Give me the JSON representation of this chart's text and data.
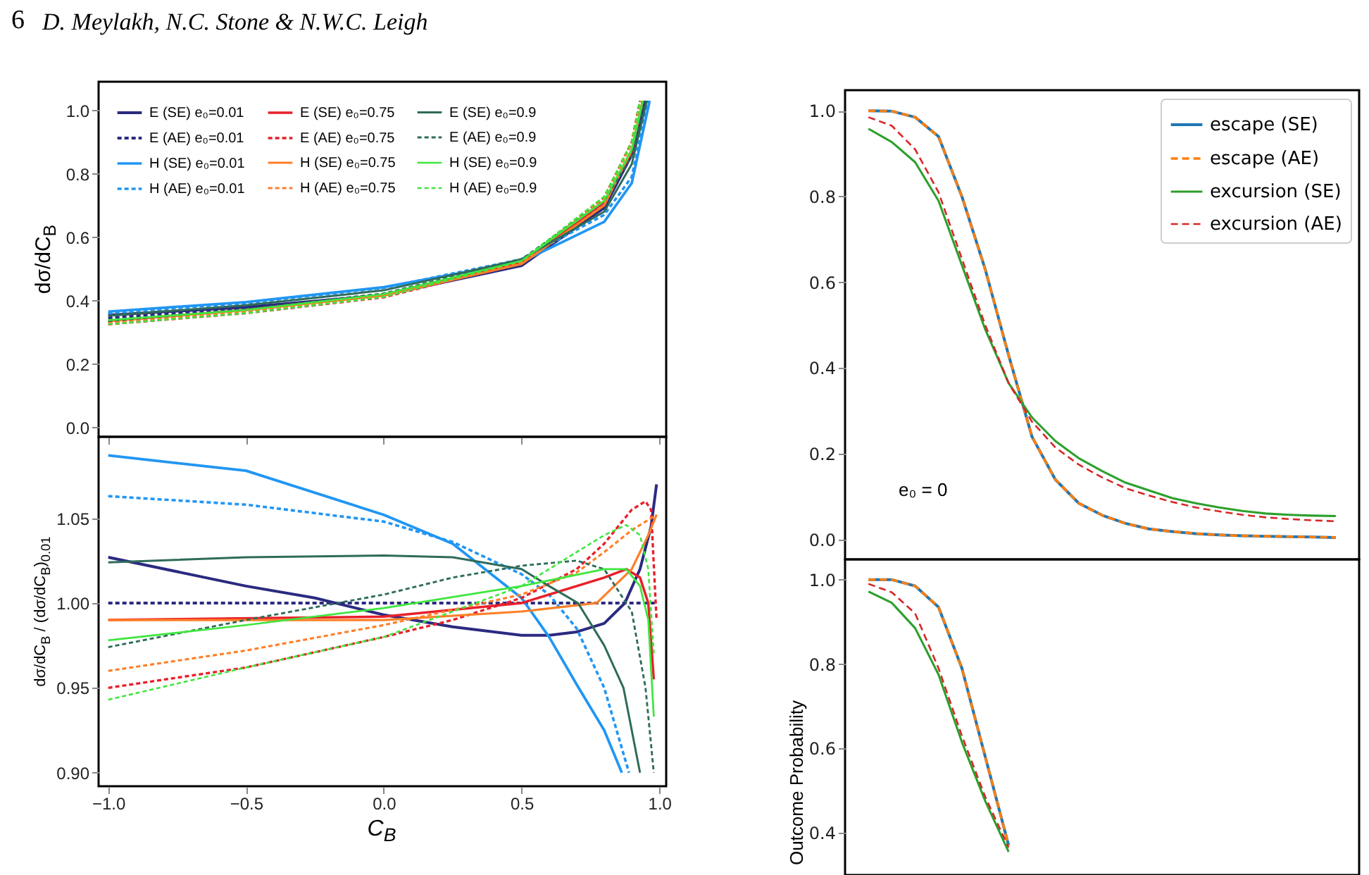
{
  "chart_data": [
    {
      "type": "line",
      "annotations": [
        "6",
        "D. Meylakh, N.C. Stone & N.W.C. Leigh"
      ],
      "ylabel": "dσ/dC$_{B}$",
      "xlim": [
        -1.035,
        1.025
      ],
      "ylim": [
        -0.03,
        1.09
      ],
      "xticks": [
        -1,
        -0.5,
        0,
        0.5,
        1
      ],
      "yticks": [
        {
          "value": 0,
          "label": "0.0"
        },
        {
          "value": 0.2,
          "label": "0.2"
        },
        {
          "value": 0.4,
          "label": "0.4"
        },
        {
          "value": 0.6,
          "label": "0.6"
        },
        {
          "value": 0.8,
          "label": "0.8"
        },
        {
          "value": 1,
          "label": "1.0"
        }
      ],
      "tick_labels": "y",
      "legend": "top left",
      "series": [
        {
          "name": "E (SE) e₀=0.01",
          "color": "#2b2a80",
          "line_style": "solid",
          "x": [
            -1,
            -0.5,
            0,
            0.5,
            0.8,
            0.9,
            0.95
          ],
          "values": [
            0.354,
            0.379,
            0.417,
            0.51,
            0.692,
            0.86,
            1.03
          ]
        },
        {
          "name": "E (AE) e₀=0.01",
          "color": "#2b2a80",
          "line_style": "dashed",
          "x": [
            -1,
            -0.5,
            0,
            0.5,
            0.8,
            0.9,
            0.945
          ],
          "values": [
            0.345,
            0.375,
            0.42,
            0.52,
            0.7,
            0.86,
            1.03
          ]
        },
        {
          "name": "H (SE) e₀=0.01",
          "color": "#2196f3",
          "line_style": "solid",
          "x": [
            -1,
            -0.5,
            0,
            0.5,
            0.8,
            0.9,
            0.965
          ],
          "values": [
            0.365,
            0.395,
            0.442,
            0.522,
            0.648,
            0.77,
            1.03
          ]
        },
        {
          "name": "H (AE) e₀=0.01",
          "color": "#2196f3",
          "line_style": "dashed",
          "x": [
            -1,
            -0.5,
            0,
            0.5,
            0.8,
            0.9,
            0.96
          ],
          "values": [
            0.36,
            0.392,
            0.44,
            0.53,
            0.67,
            0.79,
            1.03
          ]
        },
        {
          "name": "E (SE) e₀=0.75",
          "color": "#e8202a",
          "line_style": "solid",
          "x": [
            -1,
            -0.5,
            0,
            0.5,
            0.8,
            0.9,
            0.94
          ],
          "values": [
            0.335,
            0.37,
            0.417,
            0.52,
            0.71,
            0.87,
            1.03
          ]
        },
        {
          "name": "E (AE) e₀=0.75",
          "color": "#e8202a",
          "line_style": "dashed",
          "x": [
            -1,
            -0.5,
            0,
            0.5,
            0.8,
            0.9,
            0.93
          ],
          "values": [
            0.325,
            0.36,
            0.41,
            0.52,
            0.725,
            0.9,
            1.03
          ]
        },
        {
          "name": "H (SE) e₀=0.75",
          "color": "#ff7f27",
          "line_style": "solid",
          "x": [
            -1,
            -0.5,
            0,
            0.5,
            0.8,
            0.9,
            0.94
          ],
          "values": [
            0.335,
            0.37,
            0.415,
            0.515,
            0.7,
            0.875,
            1.03
          ]
        },
        {
          "name": "H (AE) e₀=0.75",
          "color": "#ff7f27",
          "line_style": "dashed",
          "x": [
            -1,
            -0.5,
            0,
            0.5,
            0.8,
            0.9,
            0.935
          ],
          "values": [
            0.33,
            0.365,
            0.415,
            0.52,
            0.72,
            0.895,
            1.03
          ]
        },
        {
          "name": "E (SE) e₀=0.9",
          "color": "#2e6b5a",
          "line_style": "solid",
          "x": [
            -1,
            -0.5,
            0,
            0.5,
            0.8,
            0.9,
            0.955
          ],
          "values": [
            0.352,
            0.385,
            0.432,
            0.53,
            0.68,
            0.83,
            1.03
          ]
        },
        {
          "name": "E (AE) e₀=0.9",
          "color": "#2e6b5a",
          "line_style": "dashed",
          "x": [
            -1,
            -0.5,
            0,
            0.5,
            0.8,
            0.9,
            0.945
          ],
          "values": [
            0.335,
            0.372,
            0.422,
            0.53,
            0.714,
            0.855,
            1.03
          ]
        },
        {
          "name": "H (SE) e₀=0.9",
          "color": "#3ee63e",
          "line_style": "solid",
          "x": [
            -1,
            -0.5,
            0,
            0.5,
            0.8,
            0.9,
            0.94
          ],
          "values": [
            0.338,
            0.37,
            0.42,
            0.525,
            0.714,
            0.877,
            1.03
          ]
        },
        {
          "name": "H (AE) e₀=0.9",
          "color": "#3ee63e",
          "line_style": "dashed",
          "x": [
            -1,
            -0.5,
            0,
            0.5,
            0.8,
            0.9,
            0.93
          ],
          "values": [
            0.325,
            0.36,
            0.411,
            0.525,
            0.728,
            0.9,
            1.03
          ]
        }
      ]
    },
    {
      "type": "line",
      "xlabel": "C$_{B}$",
      "ylabel": "dσ/dC$_{B}$ / (dσ/dC$_{B}$)$_{0.01}$",
      "xlim": [
        -1.035,
        1.025
      ],
      "ylim": [
        0.892,
        1.098
      ],
      "xticks": [
        {
          "value": -1,
          "label": "−1.0"
        },
        {
          "value": -0.5,
          "label": "−0.5"
        },
        {
          "value": 0,
          "label": "0.0"
        },
        {
          "value": 0.5,
          "label": "0.5"
        },
        {
          "value": 1,
          "label": "1.0"
        }
      ],
      "yticks": [
        {
          "value": 0.9,
          "label": "0.90"
        },
        {
          "value": 0.95,
          "label": "0.95"
        },
        {
          "value": 1,
          "label": "1.00"
        },
        {
          "value": 1.05,
          "label": "1.05"
        }
      ],
      "series": [
        {
          "color": "#2b2a80",
          "line_style": "solid",
          "x": [
            -1,
            -0.5,
            -0.25,
            0,
            0.25,
            0.5,
            0.6,
            0.7,
            0.8,
            0.875,
            0.93,
            0.97,
            0.99
          ],
          "values": [
            1.027,
            1.01,
            1.003,
            0.993,
            0.986,
            0.981,
            0.981,
            0.983,
            0.988,
            1.0,
            1.02,
            1.045,
            1.07
          ]
        },
        {
          "color": "#2b2a80",
          "line_style": "dashed",
          "x": [
            -1,
            0,
            0.99
          ],
          "values": [
            1.0,
            1.0,
            1.0
          ]
        },
        {
          "color": "#2196f3",
          "line_style": "solid",
          "x": [
            -1,
            -0.5,
            0,
            0.25,
            0.5,
            0.6,
            0.7,
            0.8,
            0.864
          ],
          "values": [
            1.087,
            1.078,
            1.052,
            1.035,
            1.003,
            0.98,
            0.952,
            0.925,
            0.9
          ]
        },
        {
          "color": "#2196f3",
          "line_style": "dashed",
          "x": [
            -1,
            -0.5,
            0,
            0.25,
            0.5,
            0.6,
            0.7,
            0.8,
            0.89
          ],
          "values": [
            1.063,
            1.058,
            1.048,
            1.036,
            1.017,
            1.005,
            0.985,
            0.95,
            0.9
          ]
        },
        {
          "color": "#e8202a",
          "line_style": "solid",
          "x": [
            -1,
            0,
            0.5,
            0.8,
            0.88,
            0.93,
            0.96,
            0.98
          ],
          "values": [
            0.99,
            0.992,
            1.0,
            1.015,
            1.02,
            1.015,
            1.0,
            0.955
          ]
        },
        {
          "color": "#e8202a",
          "line_style": "dashed",
          "x": [
            -1,
            -0.5,
            0,
            0.25,
            0.5,
            0.7,
            0.8,
            0.9,
            0.95,
            0.97,
            0.99
          ],
          "values": [
            0.95,
            0.962,
            0.98,
            0.99,
            1.003,
            1.02,
            1.035,
            1.055,
            1.06,
            1.055,
            0.99
          ]
        },
        {
          "color": "#ff7f27",
          "line_style": "solid",
          "x": [
            -1,
            0,
            0.5,
            0.773,
            0.9,
            0.96,
            0.99
          ],
          "values": [
            0.99,
            0.99,
            0.995,
            1.0,
            1.02,
            1.04,
            1.052
          ]
        },
        {
          "color": "#ff7f27",
          "line_style": "dashed",
          "x": [
            -1,
            -0.5,
            0,
            0.5,
            0.7,
            0.8,
            0.9,
            0.99
          ],
          "values": [
            0.96,
            0.972,
            0.987,
            1.005,
            1.018,
            1.03,
            1.043,
            1.052
          ]
        },
        {
          "color": "#2e6b5a",
          "line_style": "solid",
          "x": [
            -1,
            -0.5,
            0,
            0.25,
            0.5,
            0.6,
            0.705,
            0.8,
            0.87,
            0.93
          ],
          "values": [
            1.024,
            1.027,
            1.028,
            1.027,
            1.02,
            1.01,
            1.0,
            0.975,
            0.95,
            0.9
          ]
        },
        {
          "color": "#2e6b5a",
          "line_style": "dashed",
          "x": [
            -1,
            -0.5,
            0,
            0.25,
            0.5,
            0.7,
            0.8,
            0.9,
            0.95,
            0.98
          ],
          "values": [
            0.974,
            0.99,
            1.005,
            1.015,
            1.022,
            1.025,
            1.02,
            0.995,
            0.95,
            0.9
          ]
        },
        {
          "color": "#3ee63e",
          "line_style": "solid",
          "x": [
            -1,
            -0.5,
            0,
            0.5,
            0.8,
            0.88,
            0.93,
            0.96,
            0.98
          ],
          "values": [
            0.978,
            0.987,
            0.997,
            1.01,
            1.02,
            1.02,
            1.01,
            0.99,
            0.933
          ]
        },
        {
          "color": "#3ee63e",
          "line_style": "dashed",
          "x": [
            -1,
            -0.5,
            0,
            0.5,
            0.7,
            0.8,
            0.88,
            0.93,
            0.96,
            0.98
          ],
          "values": [
            0.943,
            0.962,
            0.98,
            1.01,
            1.03,
            1.04,
            1.046,
            1.04,
            1.02,
            0.97
          ]
        }
      ]
    },
    {
      "type": "line",
      "annotations": [
        "e₀ = 0"
      ],
      "categories": [
        null,
        null,
        null,
        null,
        null,
        null,
        null,
        null,
        null,
        null,
        null,
        null,
        null,
        null,
        null,
        null,
        null,
        null,
        null,
        null,
        null
      ],
      "ylim": [
        -0.046,
        1.048
      ],
      "yticks": [
        {
          "value": 0,
          "label": "0.0"
        },
        {
          "value": 0.2,
          "label": "0.2"
        },
        {
          "value": 0.4,
          "label": "0.4"
        },
        {
          "value": 0.6,
          "label": "0.6"
        },
        {
          "value": 0.8,
          "label": "0.8"
        },
        {
          "value": 1,
          "label": "1.0"
        }
      ],
      "tick_labels": "y",
      "legend": "top right",
      "series": [
        {
          "name": "escape (SE)",
          "color": "#1f77b4",
          "line_style": "solid",
          "values": [
            1.0,
            0.999,
            0.985,
            0.94,
            0.8,
            0.63,
            0.43,
            0.24,
            0.14,
            0.085,
            0.057,
            0.038,
            0.025,
            0.019,
            0.014,
            0.011,
            0.009,
            0.008,
            0.007,
            0.006,
            0.005
          ]
        },
        {
          "name": "escape (AE)",
          "color": "#ff7f0e",
          "line_style": "dashed",
          "values": [
            1.0,
            0.999,
            0.985,
            0.94,
            0.8,
            0.63,
            0.43,
            0.24,
            0.14,
            0.085,
            0.057,
            0.038,
            0.025,
            0.019,
            0.014,
            0.011,
            0.009,
            0.008,
            0.007,
            0.006,
            0.005
          ]
        },
        {
          "name": "excursion (SE)",
          "color": "#2ca02c",
          "line_style": "solid",
          "values": [
            0.958,
            0.927,
            0.88,
            0.79,
            0.64,
            0.49,
            0.365,
            0.285,
            0.23,
            0.19,
            0.16,
            0.133,
            0.115,
            0.097,
            0.085,
            0.075,
            0.067,
            0.061,
            0.058,
            0.056,
            0.055
          ]
        },
        {
          "name": "excursion (AE)",
          "color": "#d62728",
          "line_style": "dashed",
          "values": [
            0.985,
            0.965,
            0.91,
            0.81,
            0.655,
            0.5,
            0.365,
            0.275,
            0.215,
            0.175,
            0.145,
            0.12,
            0.103,
            0.088,
            0.075,
            0.066,
            0.058,
            0.052,
            0.048,
            0.045,
            0.043
          ]
        }
      ]
    },
    {
      "type": "line",
      "ylabel": "Outcome Probability",
      "categories": [
        null,
        null,
        null,
        null,
        null,
        null,
        null,
        null,
        null,
        null,
        null,
        null,
        null,
        null,
        null,
        null,
        null,
        null,
        null,
        null,
        null
      ],
      "ylim": [
        0.3,
        1.048
      ],
      "yticks": [
        {
          "value": 0.4,
          "label": "0.4"
        },
        {
          "value": 0.6,
          "label": "0.6"
        },
        {
          "value": 0.8,
          "label": "0.8"
        },
        {
          "value": 1,
          "label": "1.0"
        }
      ],
      "tick_labels": "y",
      "series": [
        {
          "color": "#1f77b4",
          "line_style": "solid",
          "values": [
            1.0,
            1.0,
            0.985,
            0.935,
            0.79,
            0.58,
            0.37,
            null,
            null,
            null,
            null,
            null,
            null,
            null,
            null,
            null,
            null,
            null,
            null,
            null,
            null
          ]
        },
        {
          "color": "#ff7f0e",
          "line_style": "dashed",
          "values": [
            1.0,
            1.0,
            0.985,
            0.935,
            0.79,
            0.58,
            0.37,
            null,
            null,
            null,
            null,
            null,
            null,
            null,
            null,
            null,
            null,
            null,
            null,
            null,
            null
          ]
        },
        {
          "color": "#2ca02c",
          "line_style": "solid",
          "values": [
            0.972,
            0.945,
            0.885,
            0.775,
            0.615,
            0.475,
            0.355,
            null,
            null,
            null,
            null,
            null,
            null,
            null,
            null,
            null,
            null,
            null,
            null,
            null,
            null
          ]
        },
        {
          "color": "#d62728",
          "line_style": "dashed",
          "values": [
            0.99,
            0.97,
            0.92,
            0.79,
            0.63,
            0.485,
            0.365,
            null,
            null,
            null,
            null,
            null,
            null,
            null,
            null,
            null,
            null,
            null,
            null,
            null,
            null
          ]
        }
      ]
    }
  ]
}
